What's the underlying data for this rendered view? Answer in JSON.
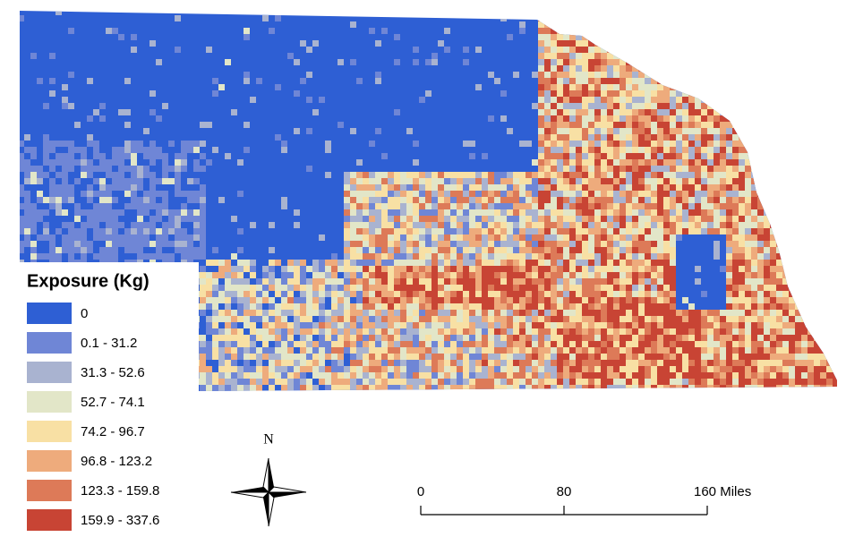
{
  "legend": {
    "title": "Exposure (Kg)",
    "entries": [
      {
        "label": "0",
        "color": "#2e5fd4"
      },
      {
        "label": "0.1 - 31.2",
        "color": "#6f86d6"
      },
      {
        "label": "31.3 - 52.6",
        "color": "#a9b3d0"
      },
      {
        "label": "52.7 - 74.1",
        "color": "#e2e6c8"
      },
      {
        "label": "74.2 - 96.7",
        "color": "#f8e0a4"
      },
      {
        "label": "96.8 - 123.2",
        "color": "#eeab7c"
      },
      {
        "label": "123.3 - 159.8",
        "color": "#dd7a58"
      },
      {
        "label": "159.9 - 337.6",
        "color": "#c84434"
      }
    ]
  },
  "north_arrow": {
    "label": "N"
  },
  "scale_bar": {
    "labels": [
      "0",
      "80",
      "160 Miles"
    ]
  }
}
